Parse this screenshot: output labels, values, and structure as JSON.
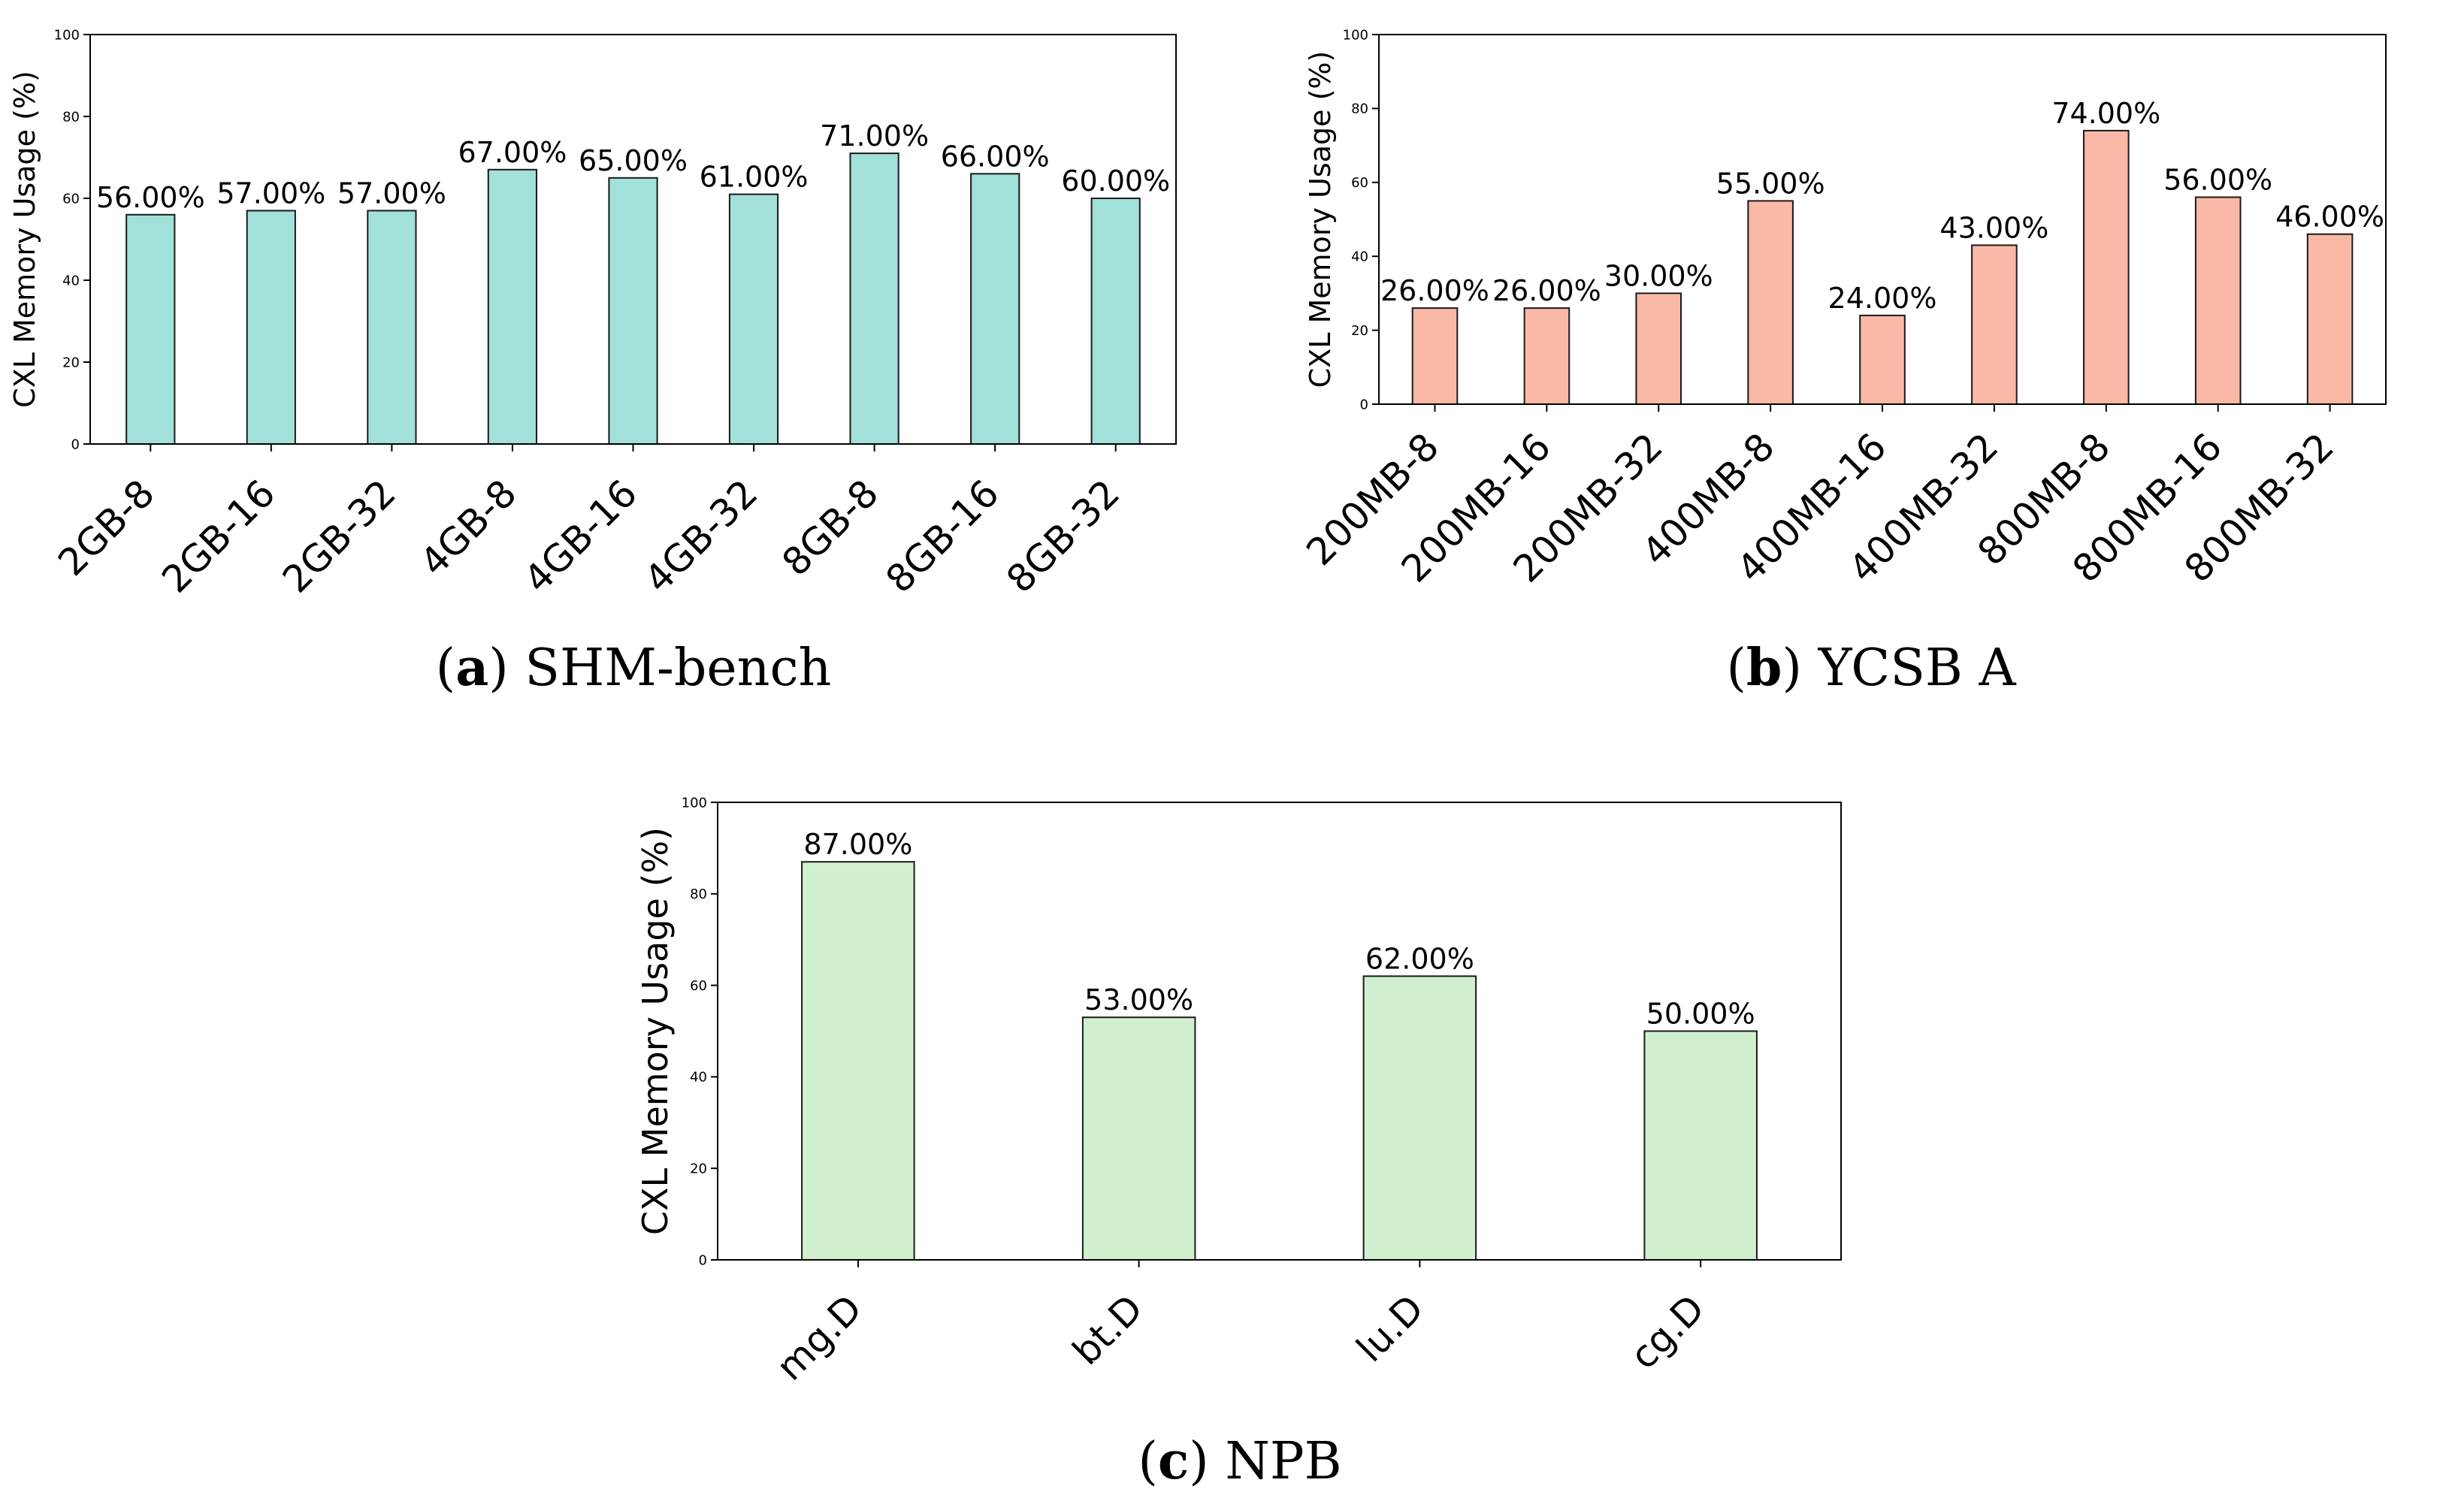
{
  "chart_data": [
    {
      "type": "bar",
      "caption_letter": "a",
      "caption_text": "SHM-bench",
      "title": "",
      "xlabel": "",
      "ylabel": "CXL Memory Usage (%)",
      "ylim": [
        0,
        100
      ],
      "yticks": [
        "0",
        "20",
        "40",
        "60",
        "80",
        "100"
      ],
      "categories": [
        "2GB-8",
        "2GB-16",
        "2GB-32",
        "4GB-8",
        "4GB-16",
        "4GB-32",
        "8GB-8",
        "8GB-16",
        "8GB-32"
      ],
      "values": [
        56,
        57,
        57,
        67,
        65,
        61,
        71,
        66,
        60
      ],
      "labels": [
        "56.00%",
        "57.00%",
        "57.00%",
        "67.00%",
        "65.00%",
        "61.00%",
        "71.00%",
        "66.00%",
        "60.00%"
      ],
      "color": "#a2e0da",
      "grid": false
    },
    {
      "type": "bar",
      "caption_letter": "b",
      "caption_text": "YCSB A",
      "title": "",
      "xlabel": "",
      "ylabel": "CXL Memory Usage (%)",
      "ylim": [
        0,
        100
      ],
      "yticks": [
        "0",
        "20",
        "40",
        "60",
        "80",
        "100"
      ],
      "categories": [
        "200MB-8",
        "200MB-16",
        "200MB-32",
        "400MB-8",
        "400MB-16",
        "400MB-32",
        "800MB-8",
        "800MB-16",
        "800MB-32"
      ],
      "values": [
        26,
        26,
        30,
        55,
        24,
        43,
        74,
        56,
        46
      ],
      "labels": [
        "26.00%",
        "26.00%",
        "30.00%",
        "55.00%",
        "24.00%",
        "43.00%",
        "74.00%",
        "56.00%",
        "46.00%"
      ],
      "color": "#fab8a6",
      "grid": false
    },
    {
      "type": "bar",
      "caption_letter": "c",
      "caption_text": "NPB",
      "title": "",
      "xlabel": "",
      "ylabel": "CXL Memory Usage (%)",
      "ylim": [
        0,
        100
      ],
      "yticks": [
        "0",
        "20",
        "40",
        "60",
        "80",
        "100"
      ],
      "categories": [
        "mg.D",
        "bt.D",
        "lu.D",
        "cg.D"
      ],
      "values": [
        87,
        53,
        62,
        50
      ],
      "labels": [
        "87.00%",
        "53.00%",
        "62.00%",
        "50.00%"
      ],
      "color": "#d0efcf",
      "grid": false
    }
  ]
}
